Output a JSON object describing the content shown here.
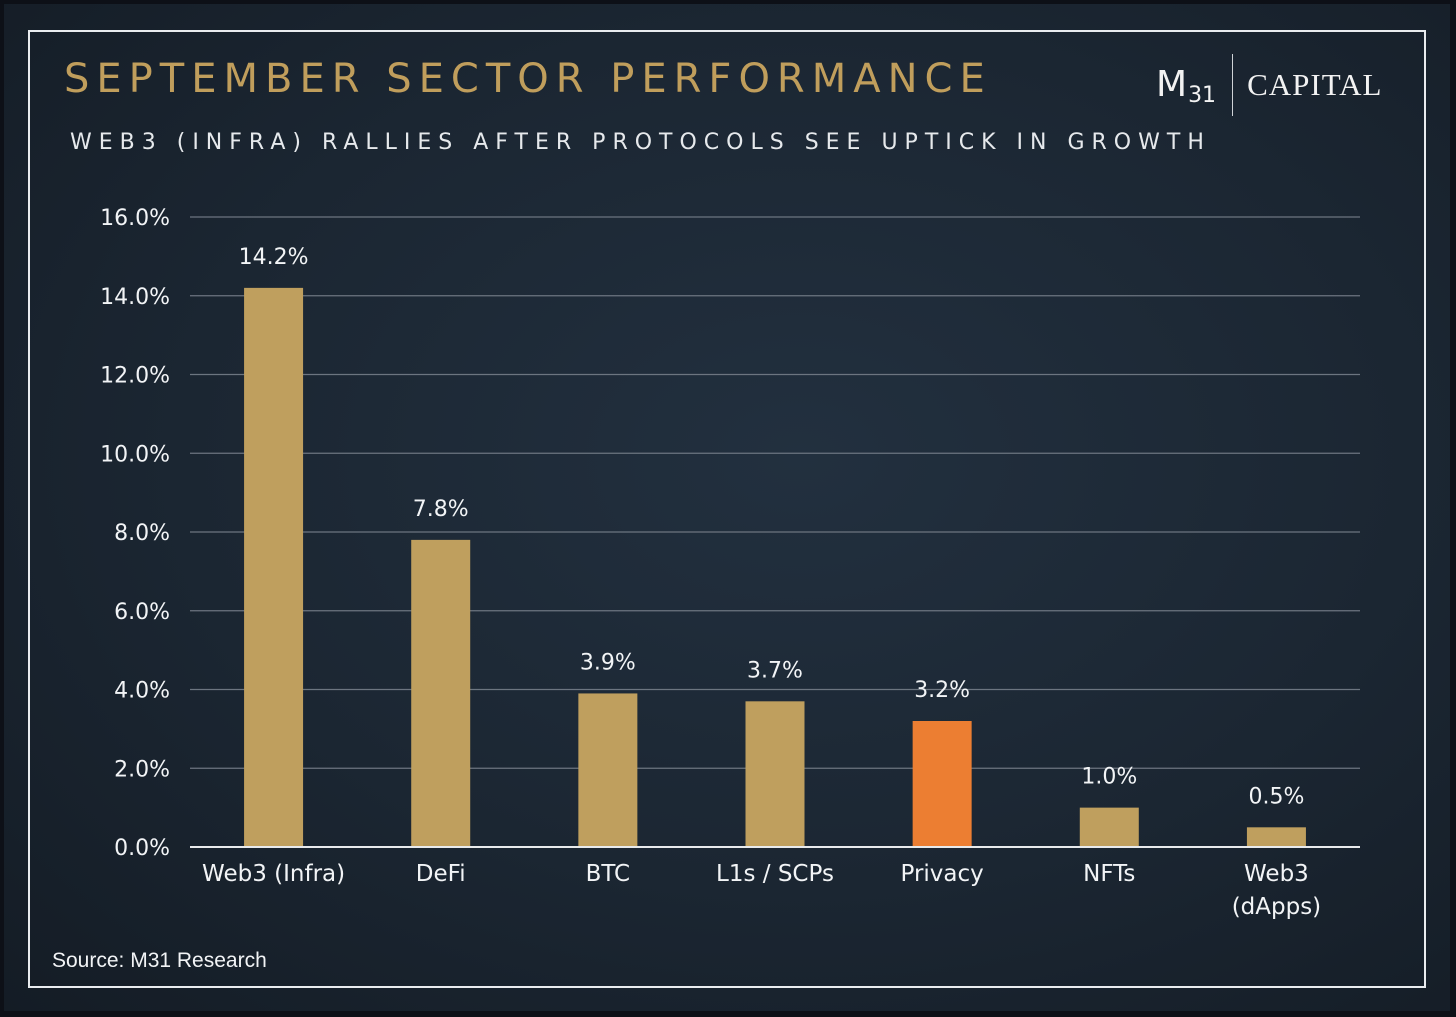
{
  "header": {
    "title": "SEPTEMBER SECTOR PERFORMANCE",
    "subtitle": "WEB3 (INFRA) RALLIES AFTER PROTOCOLS SEE UPTICK IN GROWTH"
  },
  "logo": {
    "m": "M",
    "number": "31",
    "capital": "CAPITAL"
  },
  "source": "Source: M31 Research",
  "colors": {
    "bar": "#bf9f5e",
    "highlight": "#ec7e32",
    "grid": "#6c7580",
    "title": "#c09e5c",
    "text": "#f2f4f6"
  },
  "chart_data": {
    "type": "bar",
    "title": "SEPTEMBER SECTOR PERFORMANCE",
    "subtitle": "WEB3 (INFRA) RALLIES AFTER PROTOCOLS SEE UPTICK IN GROWTH",
    "categories": [
      "Web3 (Infra)",
      "DeFi",
      "BTC",
      "L1s / SCPs",
      "Privacy",
      "NFTs",
      "Web3 (dApps)"
    ],
    "category_lines": [
      [
        "Web3 (Infra)"
      ],
      [
        "DeFi"
      ],
      [
        "BTC"
      ],
      [
        "L1s / SCPs"
      ],
      [
        "Privacy"
      ],
      [
        "NFTs"
      ],
      [
        "Web3",
        "(dApps)"
      ]
    ],
    "values": [
      14.2,
      7.8,
      3.9,
      3.7,
      3.2,
      1.0,
      0.5
    ],
    "data_labels": [
      "14.2%",
      "7.8%",
      "3.9%",
      "3.7%",
      "3.2%",
      "1.0%",
      "0.5%"
    ],
    "highlight_index": 4,
    "ylim": [
      0,
      16
    ],
    "yticks": [
      0,
      2,
      4,
      6,
      8,
      10,
      12,
      14,
      16
    ],
    "ytick_labels": [
      "0.0%",
      "2.0%",
      "4.0%",
      "6.0%",
      "8.0%",
      "10.0%",
      "12.0%",
      "14.0%",
      "16.0%"
    ],
    "xlabel": "",
    "ylabel": "",
    "grid": true,
    "legend": "none"
  }
}
